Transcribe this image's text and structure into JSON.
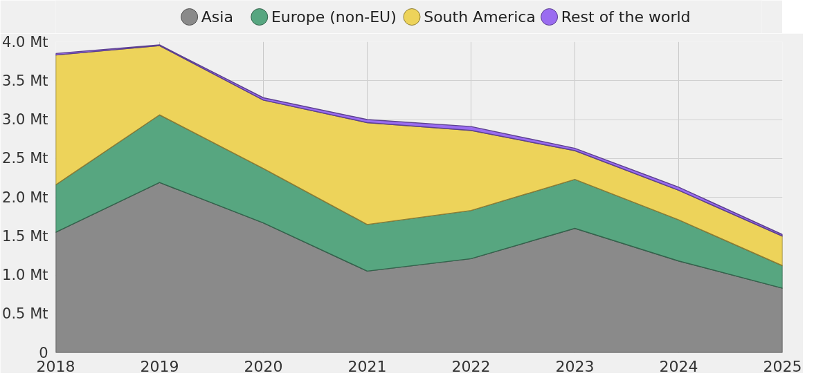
{
  "chart_data": {
    "type": "area",
    "stacked": true,
    "x": [
      2018,
      2019,
      2020,
      2021,
      2022,
      2023,
      2024,
      2025
    ],
    "series": [
      {
        "name": "Asia",
        "color": "#8a8a8a",
        "values": [
          1.55,
          2.19,
          1.67,
          1.05,
          1.21,
          1.6,
          1.18,
          0.83
        ]
      },
      {
        "name": "Europe (non-EU)",
        "color": "#57a680",
        "values": [
          0.61,
          0.87,
          0.7,
          0.6,
          0.62,
          0.63,
          0.53,
          0.29
        ]
      },
      {
        "name": "South America",
        "color": "#edd35a",
        "values": [
          1.67,
          0.89,
          0.88,
          1.31,
          1.03,
          0.37,
          0.38,
          0.38
        ]
      },
      {
        "name": "Rest of the world",
        "color": "#9a6cf0",
        "values": [
          0.02,
          0.01,
          0.03,
          0.04,
          0.05,
          0.03,
          0.04,
          0.02
        ]
      }
    ],
    "xlim": [
      2018,
      2025
    ],
    "xticks": [
      2018,
      2019,
      2020,
      2021,
      2022,
      2023,
      2024,
      2025
    ],
    "ylim": [
      0,
      4.0
    ],
    "yticks": [
      0,
      {
        "value": 0.5,
        "label": "0.5 Mt"
      },
      {
        "value": 1.0,
        "label": "1.0 Mt"
      },
      {
        "value": 1.5,
        "label": "1.5 Mt"
      },
      {
        "value": 2.0,
        "label": "2.0 Mt"
      },
      {
        "value": 2.5,
        "label": "2.5 Mt"
      },
      {
        "value": 3.0,
        "label": "3.0 Mt"
      },
      {
        "value": 3.5,
        "label": "3.5 Mt"
      },
      {
        "value": 4.0,
        "label": "4.0 Mt"
      }
    ],
    "grid": true,
    "legend": "top"
  }
}
